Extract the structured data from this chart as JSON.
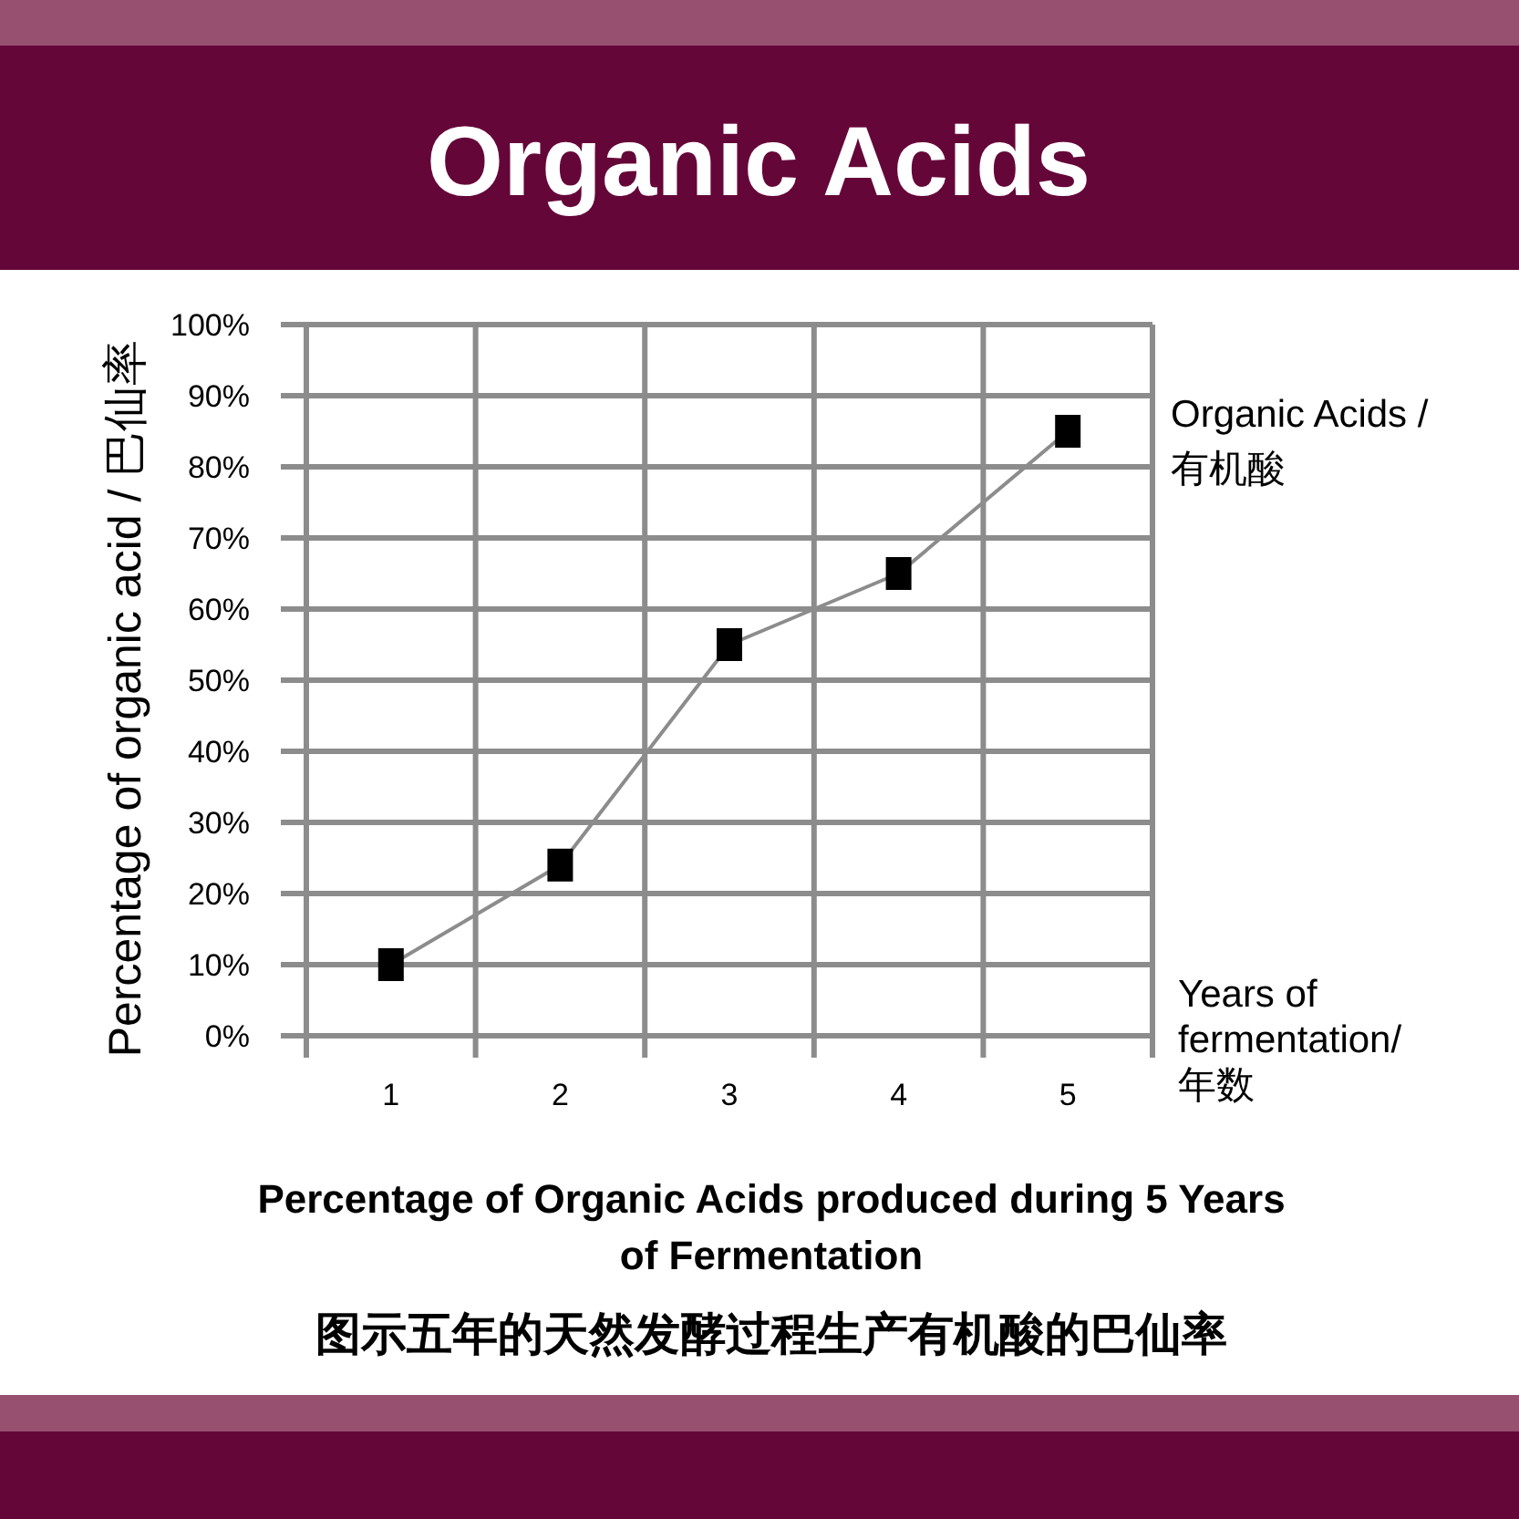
{
  "chart_data": {
    "type": "line",
    "title": "Organic Acids",
    "subtitle": "Percentage of Organic Acids produced during 5 Years of Fermentation",
    "annotations": [
      "图示五年的天然发酵过程生产有机酸的巴仙率"
    ],
    "xlabel": "Years of fermentation/ 年数",
    "ylabel": "Percentage of organic acid / 巴仙率",
    "categories": [
      "1",
      "2",
      "3",
      "4",
      "5"
    ],
    "series": [
      {
        "name": "Organic Acids / 有机酸",
        "color": "#000000",
        "values": [
          10,
          24,
          55,
          65,
          85
        ]
      }
    ],
    "ylim": [
      0,
      100
    ],
    "yticks": [
      {
        "value": 0,
        "label": "0%"
      },
      {
        "value": 10,
        "label": "10%"
      },
      {
        "value": 20,
        "label": "20%"
      },
      {
        "value": 30,
        "label": "30%"
      },
      {
        "value": 40,
        "label": "40%"
      },
      {
        "value": 50,
        "label": "50%"
      },
      {
        "value": 60,
        "label": "60%"
      },
      {
        "value": 70,
        "label": "70%"
      },
      {
        "value": 80,
        "label": "80%"
      },
      {
        "value": 90,
        "label": "90%"
      },
      {
        "value": 100,
        "label": "100%"
      }
    ],
    "grid": true,
    "legend": "right",
    "marker": "square",
    "line_style": "solid"
  }
}
